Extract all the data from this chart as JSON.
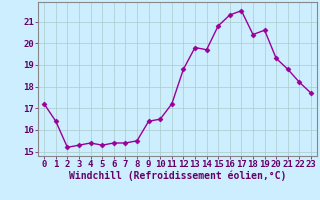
{
  "x": [
    0,
    1,
    2,
    3,
    4,
    5,
    6,
    7,
    8,
    9,
    10,
    11,
    12,
    13,
    14,
    15,
    16,
    17,
    18,
    19,
    20,
    21,
    22,
    23
  ],
  "y": [
    17.2,
    16.4,
    15.2,
    15.3,
    15.4,
    15.3,
    15.4,
    15.4,
    15.5,
    16.4,
    16.5,
    17.2,
    18.8,
    19.8,
    19.7,
    20.8,
    21.3,
    21.5,
    20.4,
    20.6,
    19.3,
    18.8,
    18.2,
    17.7
  ],
  "line_color": "#990099",
  "marker": "D",
  "markersize": 2.5,
  "linewidth": 1.0,
  "background_color": "#cceeff",
  "grid_color": "#aacccc",
  "xlabel": "Windchill (Refroidissement éolien,°C)",
  "xlabel_fontsize": 7,
  "tick_fontsize": 6.5,
  "ylim": [
    14.8,
    21.9
  ],
  "yticks": [
    15,
    16,
    17,
    18,
    19,
    20,
    21
  ],
  "xlim": [
    -0.5,
    23.5
  ],
  "xticks": [
    0,
    1,
    2,
    3,
    4,
    5,
    6,
    7,
    8,
    9,
    10,
    11,
    12,
    13,
    14,
    15,
    16,
    17,
    18,
    19,
    20,
    21,
    22,
    23
  ],
  "text_color": "#660066"
}
